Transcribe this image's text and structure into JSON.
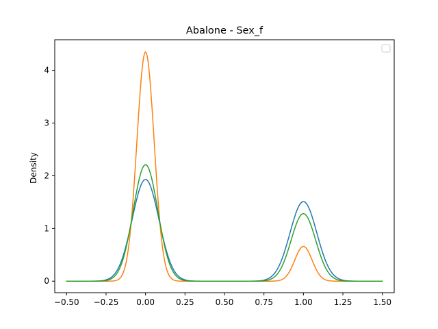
{
  "chart_data": {
    "type": "line",
    "title": "Abalone - Sex_f",
    "xlabel": "",
    "ylabel": "Density",
    "xlim": [
      -0.575,
      1.575
    ],
    "ylim": [
      -0.218,
      4.58
    ],
    "xticks": [
      -0.5,
      -0.25,
      0.0,
      0.25,
      0.5,
      0.75,
      1.0,
      1.25,
      1.5
    ],
    "xtick_labels": [
      "−0.50",
      "−0.25",
      "0.00",
      "0.25",
      "0.50",
      "0.75",
      "1.00",
      "1.25",
      "1.50"
    ],
    "yticks": [
      0,
      1,
      2,
      3,
      4
    ],
    "ytick_labels": [
      "0",
      "1",
      "2",
      "3",
      "4"
    ],
    "grid": false,
    "legend": {
      "position": "top-right",
      "entries": []
    },
    "x_range": [
      -0.5,
      1.5
    ],
    "series": [
      {
        "color": "#1f77b4",
        "components": [
          {
            "mean": 0.0,
            "peak": 1.93,
            "sd": 0.085
          },
          {
            "mean": 1.0,
            "peak": 1.51,
            "sd": 0.085
          }
        ]
      },
      {
        "color": "#ff7f0e",
        "components": [
          {
            "mean": 0.0,
            "peak": 4.35,
            "sd": 0.055
          },
          {
            "mean": 1.0,
            "peak": 0.66,
            "sd": 0.055
          }
        ]
      },
      {
        "color": "#2ca02c",
        "components": [
          {
            "mean": 0.0,
            "peak": 2.21,
            "sd": 0.078
          },
          {
            "mean": 1.0,
            "peak": 1.28,
            "sd": 0.078
          }
        ]
      }
    ]
  }
}
